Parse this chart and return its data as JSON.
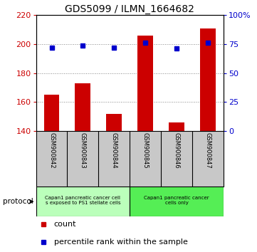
{
  "title": "GDS5099 / ILMN_1664682",
  "samples": [
    "GSM900842",
    "GSM900843",
    "GSM900844",
    "GSM900845",
    "GSM900846",
    "GSM900847"
  ],
  "counts": [
    165,
    173,
    152,
    206,
    146,
    211
  ],
  "percentile_ranks": [
    72,
    74,
    72,
    76,
    71,
    76
  ],
  "count_baseline": 140,
  "count_ylim": [
    140,
    220
  ],
  "count_yticks": [
    140,
    160,
    180,
    200,
    220
  ],
  "percentile_ylim": [
    0,
    100
  ],
  "percentile_yticks": [
    0,
    25,
    50,
    75,
    100
  ],
  "percentile_labels": [
    "0",
    "25",
    "50",
    "75",
    "100%"
  ],
  "bar_color": "#cc0000",
  "dot_color": "#0000cc",
  "left_yaxis_color": "#cc0000",
  "right_yaxis_color": "#0000cc",
  "group1_label": "Capan1 pancreatic cancer cell\ns exposed to PS1 stellate cells",
  "group2_label": "Capan1 pancreatic cancer\ncells only",
  "group1_color": "#bbffbb",
  "group2_color": "#55ee55",
  "protocol_label": "protocol",
  "legend_count_label": "count",
  "legend_percentile_label": "percentile rank within the sample",
  "bg_color": "#ffffff",
  "tick_label_area_color": "#c8c8c8",
  "gridline_color": "#888888",
  "title_fontsize": 10,
  "tick_fontsize": 8,
  "label_fontsize": 7.5
}
